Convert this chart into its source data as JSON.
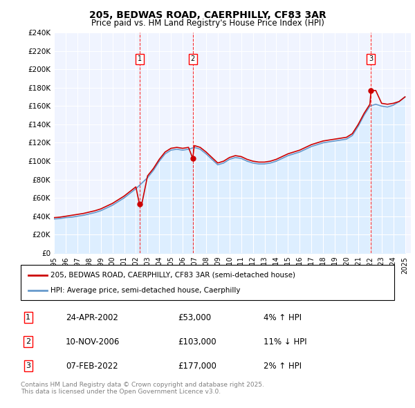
{
  "title1": "205, BEDWAS ROAD, CAERPHILLY, CF83 3AR",
  "title2": "Price paid vs. HM Land Registry's House Price Index (HPI)",
  "ylim": [
    0,
    240000
  ],
  "yticks": [
    0,
    20000,
    40000,
    60000,
    80000,
    100000,
    120000,
    140000,
    160000,
    180000,
    200000,
    220000,
    240000
  ],
  "ytick_labels": [
    "£0",
    "£20K",
    "£40K",
    "£60K",
    "£80K",
    "£100K",
    "£120K",
    "£140K",
    "£160K",
    "£180K",
    "£200K",
    "£220K",
    "£240K"
  ],
  "sales": [
    {
      "date_num": 2002.31,
      "price": 53000,
      "label": "1"
    },
    {
      "date_num": 2006.86,
      "price": 103000,
      "label": "2"
    },
    {
      "date_num": 2022.1,
      "price": 177000,
      "label": "3"
    }
  ],
  "hpi_x": [
    1995,
    1995.5,
    1996,
    1996.5,
    1997,
    1997.5,
    1998,
    1998.5,
    1999,
    1999.5,
    2000,
    2000.5,
    2001,
    2001.5,
    2002,
    2002.5,
    2003,
    2003.5,
    2004,
    2004.5,
    2005,
    2005.5,
    2006,
    2006.5,
    2007,
    2007.5,
    2008,
    2008.5,
    2009,
    2009.5,
    2010,
    2010.5,
    2011,
    2011.5,
    2012,
    2012.5,
    2013,
    2013.5,
    2014,
    2014.5,
    2015,
    2015.5,
    2016,
    2016.5,
    2017,
    2017.5,
    2018,
    2018.5,
    2019,
    2019.5,
    2020,
    2020.5,
    2021,
    2021.5,
    2022,
    2022.5,
    2023,
    2023.5,
    2024,
    2024.5,
    2025
  ],
  "hpi_y": [
    37000,
    37500,
    38500,
    39000,
    40000,
    41000,
    42500,
    44000,
    46000,
    49000,
    52000,
    56000,
    60000,
    65000,
    70000,
    76000,
    82000,
    90000,
    100000,
    108000,
    112000,
    113000,
    112000,
    113000,
    115000,
    113000,
    108000,
    102000,
    96000,
    98000,
    102000,
    104000,
    103000,
    100000,
    98000,
    97000,
    97000,
    98000,
    100000,
    103000,
    106000,
    108000,
    110000,
    113000,
    116000,
    118000,
    120000,
    121000,
    122000,
    123000,
    124000,
    128000,
    138000,
    150000,
    160000,
    162000,
    160000,
    159000,
    161000,
    165000,
    170000
  ],
  "price_x": [
    1995,
    1995.5,
    1996,
    1996.5,
    1997,
    1997.5,
    1998,
    1998.5,
    1999,
    1999.5,
    2000,
    2000.5,
    2001,
    2001.5,
    2002,
    2002.31,
    2002.5,
    2003,
    2003.5,
    2004,
    2004.5,
    2005,
    2005.5,
    2006,
    2006.5,
    2006.86,
    2007,
    2007.5,
    2008,
    2008.5,
    2009,
    2009.5,
    2010,
    2010.5,
    2011,
    2011.5,
    2012,
    2012.5,
    2013,
    2013.5,
    2014,
    2014.5,
    2015,
    2015.5,
    2016,
    2016.5,
    2017,
    2017.5,
    2018,
    2018.5,
    2019,
    2019.5,
    2020,
    2020.5,
    2021,
    2021.5,
    2022,
    2022.1,
    2022.5,
    2023,
    2023.5,
    2024,
    2024.5,
    2025
  ],
  "price_y": [
    38500,
    39000,
    40000,
    41000,
    42000,
    43000,
    44500,
    46000,
    48000,
    51000,
    54000,
    58000,
    62000,
    67000,
    72000,
    53000,
    53000,
    84000,
    92000,
    102000,
    110000,
    114000,
    115000,
    114000,
    115000,
    103000,
    117000,
    115000,
    110000,
    104000,
    98000,
    100000,
    104000,
    106000,
    105000,
    102000,
    100000,
    99000,
    99000,
    100000,
    102000,
    105000,
    108000,
    110000,
    112000,
    115000,
    118000,
    120000,
    122000,
    123000,
    124000,
    125000,
    126000,
    130000,
    140000,
    152000,
    162000,
    177000,
    177000,
    163000,
    162000,
    163000,
    165000,
    170000
  ],
  "legend_label1": "205, BEDWAS ROAD, CAERPHILLY, CF83 3AR (semi-detached house)",
  "legend_label2": "HPI: Average price, semi-detached house, Caerphilly",
  "table_rows": [
    {
      "num": "1",
      "date": "24-APR-2002",
      "price": "£53,000",
      "hpi": "4% ↑ HPI"
    },
    {
      "num": "2",
      "date": "10-NOV-2006",
      "price": "£103,000",
      "hpi": "11% ↓ HPI"
    },
    {
      "num": "3",
      "date": "07-FEB-2022",
      "price": "£177,000",
      "hpi": "2% ↑ HPI"
    }
  ],
  "footnote": "Contains HM Land Registry data © Crown copyright and database right 2025.\nThis data is licensed under the Open Government Licence v3.0.",
  "line_color_red": "#cc0000",
  "line_color_blue": "#6699cc",
  "fill_color_blue": "#ddeeff",
  "background_color": "#f0f4ff",
  "xticks": [
    1995,
    1996,
    1997,
    1998,
    1999,
    2000,
    2001,
    2002,
    2003,
    2004,
    2005,
    2006,
    2007,
    2008,
    2009,
    2010,
    2011,
    2012,
    2013,
    2014,
    2015,
    2016,
    2017,
    2018,
    2019,
    2020,
    2021,
    2022,
    2023,
    2024,
    2025
  ]
}
